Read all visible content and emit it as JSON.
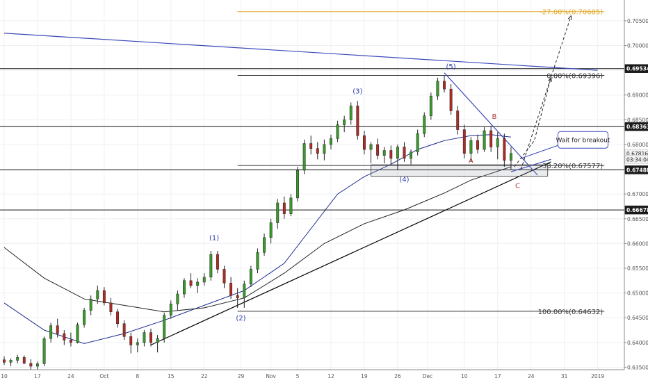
{
  "chart_data": {
    "type": "candlestick",
    "title": "",
    "xlabel": "",
    "ylabel": "",
    "ylim": [
      0.6345,
      0.7092
    ],
    "xlim": [
      10,
      103
    ],
    "grid": true,
    "axes_note": "x is trading-day index from 10 Sep 2018 (index 10) to early Jan 2019; right price axis",
    "x_tick_labels": [
      {
        "x": 10,
        "label": "10"
      },
      {
        "x": 15,
        "label": "17"
      },
      {
        "x": 20,
        "label": "24"
      },
      {
        "x": 25,
        "label": "Oct"
      },
      {
        "x": 30,
        "label": "8"
      },
      {
        "x": 35,
        "label": "15"
      },
      {
        "x": 40,
        "label": "22"
      },
      {
        "x": 45.5,
        "label": "29"
      },
      {
        "x": 50,
        "label": "Nov"
      },
      {
        "x": 54,
        "label": "5"
      },
      {
        "x": 59,
        "label": "12"
      },
      {
        "x": 64,
        "label": "19"
      },
      {
        "x": 69,
        "label": "26"
      },
      {
        "x": 73.5,
        "label": "Dec"
      },
      {
        "x": 79,
        "label": "10"
      },
      {
        "x": 84,
        "label": "17"
      },
      {
        "x": 89,
        "label": "24"
      },
      {
        "x": 94,
        "label": "31"
      },
      {
        "x": 99,
        "label": "2019"
      }
    ],
    "y_tick_labels": [
      "0.63500",
      "0.64000",
      "0.64500",
      "0.65000",
      "0.65500",
      "0.66000",
      "0.66500",
      "0.67000",
      "0.67500",
      "0.68000",
      "0.68500",
      "0.69000",
      "0.69500",
      "0.70000",
      "0.70500"
    ],
    "y_ticks": [
      0.635,
      0.64,
      0.645,
      0.65,
      0.655,
      0.66,
      0.665,
      0.67,
      0.675,
      0.68,
      0.685,
      0.69,
      0.695,
      0.7,
      0.705
    ],
    "price_badges": [
      {
        "value": 0.69534,
        "label": "0.69534",
        "style": "dark"
      },
      {
        "value": 0.68363,
        "label": "0.68363",
        "style": "dark"
      },
      {
        "value": 0.67816,
        "label": "0.67816",
        "style": "light"
      },
      {
        "value": 0.677,
        "label": "03:34:04",
        "style": "light"
      },
      {
        "value": 0.67488,
        "label": "0.67488",
        "style": "dark"
      },
      {
        "value": 0.66678,
        "label": "0.66678",
        "style": "dark"
      }
    ],
    "horizontal_levels": [
      0.69534,
      0.68363,
      0.67488,
      0.66678
    ],
    "candles": [
      [
        10,
        0.6365,
        0.6372,
        0.6355,
        0.636
      ],
      [
        11,
        0.636,
        0.6368,
        0.6352,
        0.6364
      ],
      [
        12,
        0.6364,
        0.6375,
        0.6358,
        0.637
      ],
      [
        13,
        0.637,
        0.6374,
        0.6356,
        0.6358
      ],
      [
        14,
        0.6358,
        0.6366,
        0.6345,
        0.6352
      ],
      [
        15,
        0.6352,
        0.6362,
        0.6345,
        0.6357
      ],
      [
        16,
        0.6357,
        0.6412,
        0.6352,
        0.6408
      ],
      [
        17,
        0.6408,
        0.644,
        0.64,
        0.6434
      ],
      [
        18,
        0.6434,
        0.6448,
        0.641,
        0.6418
      ],
      [
        19,
        0.6418,
        0.6425,
        0.6395,
        0.6405
      ],
      [
        20,
        0.6405,
        0.642,
        0.6392,
        0.64
      ],
      [
        21,
        0.64,
        0.644,
        0.6398,
        0.6436
      ],
      [
        22,
        0.6436,
        0.647,
        0.643,
        0.6465
      ],
      [
        23,
        0.6465,
        0.6495,
        0.6455,
        0.6488
      ],
      [
        24,
        0.6488,
        0.6515,
        0.6478,
        0.6505
      ],
      [
        25,
        0.6505,
        0.6512,
        0.6475,
        0.648
      ],
      [
        26,
        0.648,
        0.649,
        0.6455,
        0.6462
      ],
      [
        27,
        0.6462,
        0.6468,
        0.643,
        0.6438
      ],
      [
        28,
        0.6438,
        0.6445,
        0.6405,
        0.6412
      ],
      [
        29,
        0.6412,
        0.642,
        0.6378,
        0.6395
      ],
      [
        30,
        0.6395,
        0.6408,
        0.638,
        0.64
      ],
      [
        31,
        0.64,
        0.6425,
        0.6392,
        0.642
      ],
      [
        32,
        0.642,
        0.6428,
        0.6392,
        0.64
      ],
      [
        33,
        0.64,
        0.6415,
        0.638,
        0.6408
      ],
      [
        34,
        0.6408,
        0.646,
        0.64,
        0.6455
      ],
      [
        35,
        0.6455,
        0.6485,
        0.6448,
        0.6478
      ],
      [
        36,
        0.6478,
        0.6505,
        0.6465,
        0.6498
      ],
      [
        37,
        0.6498,
        0.653,
        0.649,
        0.6525
      ],
      [
        38,
        0.6525,
        0.654,
        0.651,
        0.6515
      ],
      [
        39,
        0.6515,
        0.653,
        0.65,
        0.6522
      ],
      [
        40,
        0.6522,
        0.654,
        0.6515,
        0.6532
      ],
      [
        41,
        0.6532,
        0.6585,
        0.6525,
        0.6578
      ],
      [
        42,
        0.6578,
        0.6585,
        0.654,
        0.6548
      ],
      [
        43,
        0.6548,
        0.6555,
        0.651,
        0.652
      ],
      [
        44,
        0.652,
        0.6532,
        0.6488,
        0.6495
      ],
      [
        45,
        0.6495,
        0.651,
        0.647,
        0.649
      ],
      [
        46,
        0.649,
        0.6525,
        0.647,
        0.6518
      ],
      [
        47,
        0.6518,
        0.6555,
        0.6512,
        0.6548
      ],
      [
        48,
        0.6548,
        0.659,
        0.654,
        0.6582
      ],
      [
        49,
        0.6582,
        0.662,
        0.6575,
        0.6612
      ],
      [
        50,
        0.6612,
        0.665,
        0.66,
        0.6642
      ],
      [
        51,
        0.6642,
        0.669,
        0.663,
        0.6682
      ],
      [
        52,
        0.6682,
        0.6695,
        0.665,
        0.666
      ],
      [
        53,
        0.666,
        0.67,
        0.6655,
        0.6692
      ],
      [
        54,
        0.6692,
        0.6755,
        0.6685,
        0.6748
      ],
      [
        55,
        0.6748,
        0.681,
        0.674,
        0.6802
      ],
      [
        56,
        0.6802,
        0.6818,
        0.678,
        0.6792
      ],
      [
        57,
        0.6792,
        0.6805,
        0.677,
        0.6782
      ],
      [
        58,
        0.6782,
        0.681,
        0.6768,
        0.68
      ],
      [
        59,
        0.68,
        0.682,
        0.679,
        0.6812
      ],
      [
        60,
        0.6812,
        0.6848,
        0.6805,
        0.684
      ],
      [
        61,
        0.684,
        0.6858,
        0.6825,
        0.685
      ],
      [
        62,
        0.685,
        0.6885,
        0.684,
        0.6878
      ],
      [
        63,
        0.6878,
        0.6888,
        0.681,
        0.6818
      ],
      [
        64,
        0.6818,
        0.6828,
        0.678,
        0.679
      ],
      [
        65,
        0.679,
        0.6805,
        0.6762,
        0.68
      ],
      [
        66,
        0.68,
        0.6812,
        0.677,
        0.6778
      ],
      [
        67,
        0.6778,
        0.6795,
        0.6762,
        0.6788
      ],
      [
        68,
        0.6788,
        0.6798,
        0.676,
        0.6772
      ],
      [
        69,
        0.6772,
        0.68,
        0.6748,
        0.6795
      ],
      [
        70,
        0.6795,
        0.6805,
        0.6765,
        0.6772
      ],
      [
        71,
        0.6772,
        0.679,
        0.676,
        0.6785
      ],
      [
        72,
        0.6785,
        0.683,
        0.6778,
        0.6822
      ],
      [
        73,
        0.6822,
        0.6865,
        0.6815,
        0.6858
      ],
      [
        74,
        0.6858,
        0.6905,
        0.685,
        0.6898
      ],
      [
        75,
        0.6898,
        0.6935,
        0.689,
        0.6928
      ],
      [
        76,
        0.6928,
        0.694,
        0.6905,
        0.6912
      ],
      [
        77,
        0.6912,
        0.6922,
        0.686,
        0.6868
      ],
      [
        78,
        0.6868,
        0.6878,
        0.682,
        0.683
      ],
      [
        79,
        0.683,
        0.684,
        0.6772,
        0.6782
      ],
      [
        80,
        0.6782,
        0.6815,
        0.6765,
        0.6808
      ],
      [
        81,
        0.6808,
        0.682,
        0.6782,
        0.679
      ],
      [
        82,
        0.679,
        0.6835,
        0.6785,
        0.6828
      ],
      [
        83,
        0.6828,
        0.6838,
        0.6785,
        0.6795
      ],
      [
        84,
        0.6795,
        0.6825,
        0.677,
        0.6812
      ],
      [
        85,
        0.6812,
        0.6822,
        0.6755,
        0.6768
      ],
      [
        86,
        0.6768,
        0.6795,
        0.675,
        0.6782
      ]
    ],
    "series": [
      {
        "name": "",
        "color": "#1c2a8c",
        "x": [
          10,
          16,
          22,
          28,
          34,
          40,
          46,
          52,
          56,
          60,
          64,
          68,
          72,
          76,
          80,
          83,
          86
        ],
        "values": [
          0.648,
          0.6425,
          0.6398,
          0.6418,
          0.6445,
          0.6475,
          0.6505,
          0.656,
          0.663,
          0.67,
          0.6735,
          0.676,
          0.679,
          0.6808,
          0.6818,
          0.682,
          0.6815
        ]
      },
      {
        "name": "",
        "color": "#222222",
        "x": [
          10,
          16,
          22,
          28,
          34,
          40,
          46,
          52,
          58,
          64,
          70,
          76,
          80,
          86
        ],
        "values": [
          0.6592,
          0.653,
          0.6488,
          0.6475,
          0.6462,
          0.647,
          0.649,
          0.654,
          0.66,
          0.664,
          0.6668,
          0.6702,
          0.6728,
          0.6755
        ]
      }
    ],
    "trendlines": [
      {
        "points": [
          [
            10,
            0.7025
          ],
          [
            99,
            0.695
          ]
        ],
        "color": "#3a49b8"
      },
      {
        "points": [
          [
            32,
            0.6395
          ],
          [
            92,
            0.6765
          ]
        ],
        "color": "#000000"
      },
      {
        "points": [
          [
            76,
            0.6945
          ],
          [
            90,
            0.6738
          ]
        ],
        "color": "#3a49b8"
      },
      {
        "points": [
          [
            86,
            0.6745
          ],
          [
            92,
            0.677
          ]
        ],
        "color": "#3a49b8"
      }
    ],
    "fib_levels": [
      {
        "value": 0.70685,
        "label": "-27.00%(0.70685)",
        "color": "#e0a92a",
        "x_start": 45,
        "x_end": 100
      },
      {
        "value": 0.69396,
        "label": "0.00%(0.69396)",
        "color": "#333333",
        "x_start": 45,
        "x_end": 100
      },
      {
        "value": 0.67577,
        "label": "38.20%(0.67577)",
        "color": "#333333",
        "x_start": 45,
        "x_end": 100
      },
      {
        "value": 0.64632,
        "label": "100.00%(0.64632)",
        "color": "#333333",
        "x_start": 45,
        "x_end": 100
      }
    ],
    "support_box": {
      "x": [
        65,
        91.5
      ],
      "y": [
        0.6736,
        0.6759
      ]
    },
    "wave_labels": [
      {
        "label": "(1)",
        "x": 41.5,
        "y": 0.6607,
        "color": "#2b3aa8"
      },
      {
        "label": "(2)",
        "x": 45.5,
        "y": 0.6445,
        "color": "#2b3aa8"
      },
      {
        "label": "(3)",
        "x": 63,
        "y": 0.6903,
        "color": "#2b3aa8"
      },
      {
        "label": "(4)",
        "x": 70,
        "y": 0.6725,
        "color": "#2b3aa8"
      },
      {
        "label": "(5)",
        "x": 77,
        "y": 0.6953,
        "color": "#2b3aa8"
      },
      {
        "label": "A",
        "x": 80,
        "y": 0.6763,
        "color": "#b23a3a"
      },
      {
        "label": "B",
        "x": 83.5,
        "y": 0.6852,
        "color": "#b23a3a"
      },
      {
        "label": "C",
        "x": 87,
        "y": 0.6712,
        "color": "#b23a3a"
      }
    ],
    "projections": [
      {
        "points": [
          [
            86.5,
            0.6755
          ],
          [
            89.5,
            0.6808
          ],
          [
            92,
            0.6935
          ]
        ],
        "end": "arrow"
      },
      {
        "points": [
          [
            87.5,
            0.675
          ],
          [
            95,
            0.706
          ]
        ],
        "end": "arrow"
      }
    ],
    "annotations": [
      {
        "text": "Wait for breakout",
        "x": 94.5,
        "y": 0.6808
      }
    ]
  }
}
